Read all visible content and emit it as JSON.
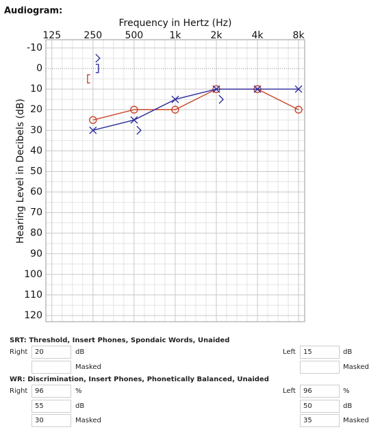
{
  "chart_data": {
    "type": "line",
    "title": "Audiogram:",
    "xlabel": "Frequency in Hertz (Hz)",
    "ylabel": "Hearing Level in Decibels (dB)",
    "xscale": "log",
    "xlim": [
      113,
      8870
    ],
    "ylim": [
      -14,
      123
    ],
    "yinverted": true,
    "grid": true,
    "xticks": [
      125,
      250,
      500,
      {
        "value": 1000,
        "label": "1k"
      },
      {
        "value": 2000,
        "label": "2k"
      },
      {
        "value": 4000,
        "label": "4k"
      },
      {
        "value": 8000,
        "label": "8k"
      }
    ],
    "yticks": [
      -10,
      0,
      10,
      20,
      30,
      40,
      50,
      60,
      70,
      80,
      90,
      100,
      110,
      120
    ],
    "x": [
      250,
      500,
      1000,
      2000,
      4000,
      8000
    ],
    "series": [
      {
        "color": "#c8442a",
        "marker": "o",
        "line": true,
        "values": [
          25,
          20,
          20,
          10,
          10,
          20
        ]
      },
      {
        "color": "#2b2b9c",
        "marker": "x",
        "line": true,
        "values": [
          30,
          25,
          15,
          10,
          10,
          10
        ]
      },
      {
        "color": "#2b2b9c",
        "marker": ">",
        "line": false,
        "values": [
          -5,
          30,
          null,
          15,
          null,
          null
        ]
      },
      {
        "color": "#2b2b9c",
        "marker": "]",
        "line": false,
        "values": [
          0,
          null,
          null,
          null,
          null,
          null
        ]
      },
      {
        "color": "#c8442a",
        "marker": "[",
        "line": false,
        "values": [
          5,
          null,
          null,
          null,
          null,
          null
        ]
      }
    ]
  },
  "srt": {
    "heading": "SRT: Threshold, Insert Phones, Spondaic Words, Unaided",
    "right": {
      "label": "Right",
      "rows": [
        {
          "value": 20,
          "unit": "dB"
        },
        {
          "unit": "Masked"
        }
      ]
    },
    "left": {
      "label": "Left",
      "rows": [
        {
          "value": 15,
          "unit": "dB"
        },
        {
          "unit": "Masked"
        }
      ]
    }
  },
  "wr": {
    "heading": "WR: Discrimination, Insert Phones, Phonetically Balanced, Unaided",
    "right": {
      "label": "Right",
      "rows": [
        {
          "value": 96,
          "unit": "%"
        },
        {
          "value": 55,
          "unit": "dB"
        },
        {
          "value": 30,
          "unit": "Masked"
        }
      ]
    },
    "left": {
      "label": "Left",
      "rows": [
        {
          "value": 96,
          "unit": "%"
        },
        {
          "value": 50,
          "unit": "dB"
        },
        {
          "value": 35,
          "unit": "Masked"
        }
      ]
    }
  }
}
